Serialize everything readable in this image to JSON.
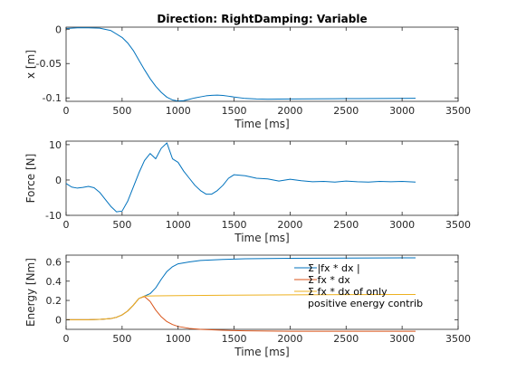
{
  "chart_data": [
    {
      "type": "line",
      "title": "Direction: RightDamping: Variable",
      "xlabel": "Time [ms]",
      "ylabel": "x [m]",
      "xlim": [
        0,
        3500
      ],
      "ylim": [
        -0.105,
        0.003
      ],
      "xticks": [
        0,
        500,
        1000,
        1500,
        2000,
        2500,
        3000,
        3500
      ],
      "xtick_labels": [
        "0",
        "500",
        "1000",
        "1500",
        "2000",
        "2500",
        "3000",
        "3500"
      ],
      "yticks": [
        0,
        -0.05,
        -0.1
      ],
      "ytick_labels": [
        "0",
        "-0.05",
        "-0.1"
      ],
      "grid": false,
      "series": [
        {
          "color": "#0072bd",
          "x": [
            0,
            100,
            200,
            300,
            400,
            500,
            550,
            600,
            650,
            700,
            750,
            800,
            850,
            900,
            950,
            1000,
            1050,
            1100,
            1150,
            1200,
            1250,
            1300,
            1350,
            1400,
            1450,
            1500,
            1600,
            1700,
            1800,
            2000,
            2200,
            2400,
            2600,
            2800,
            3000,
            3120
          ],
          "y": [
            0.001,
            0.002,
            0.002,
            0.0015,
            -0.002,
            -0.012,
            -0.02,
            -0.031,
            -0.045,
            -0.059,
            -0.072,
            -0.083,
            -0.092,
            -0.099,
            -0.103,
            -0.1045,
            -0.104,
            -0.102,
            -0.1,
            -0.0985,
            -0.097,
            -0.0962,
            -0.096,
            -0.0965,
            -0.0975,
            -0.0988,
            -0.1008,
            -0.1015,
            -0.1018,
            -0.1016,
            -0.1013,
            -0.1012,
            -0.101,
            -0.1009,
            -0.1008,
            -0.1006
          ]
        }
      ]
    },
    {
      "type": "line",
      "title": "",
      "xlabel": "Time [ms]",
      "ylabel": "Force [N]",
      "xlim": [
        0,
        3500
      ],
      "ylim": [
        -10,
        11
      ],
      "xticks": [
        0,
        500,
        1000,
        1500,
        2000,
        2500,
        3000,
        3500
      ],
      "xtick_labels": [
        "0",
        "500",
        "1000",
        "1500",
        "2000",
        "2500",
        "3000",
        "3500"
      ],
      "yticks": [
        10,
        0,
        -10
      ],
      "ytick_labels": [
        "10",
        "0",
        "-10"
      ],
      "grid": false,
      "series": [
        {
          "color": "#0072bd",
          "x": [
            0,
            50,
            100,
            150,
            200,
            250,
            300,
            350,
            400,
            450,
            500,
            550,
            600,
            650,
            700,
            750,
            800,
            850,
            900,
            950,
            1000,
            1050,
            1100,
            1150,
            1200,
            1250,
            1300,
            1350,
            1400,
            1450,
            1500,
            1600,
            1700,
            1800,
            1900,
            2000,
            2100,
            2200,
            2300,
            2400,
            2500,
            2600,
            2700,
            2800,
            2900,
            3000,
            3120
          ],
          "y": [
            -1,
            -2,
            -2.3,
            -2.1,
            -1.8,
            -2.2,
            -3.5,
            -5.5,
            -7.5,
            -9,
            -8.8,
            -6,
            -2,
            2,
            5.5,
            7.5,
            6,
            9,
            10.5,
            6,
            5,
            2.5,
            0.5,
            -1.5,
            -3,
            -4,
            -4,
            -3,
            -1.5,
            0.5,
            1.5,
            1.2,
            0.5,
            0.3,
            -0.3,
            0.2,
            -0.2,
            -0.5,
            -0.4,
            -0.6,
            -0.3,
            -0.5,
            -0.6,
            -0.4,
            -0.5,
            -0.4,
            -0.6
          ]
        }
      ]
    },
    {
      "type": "line",
      "title": "",
      "xlabel": "Time [ms]",
      "ylabel": "Energy [Nm]",
      "xlim": [
        0,
        3500
      ],
      "ylim": [
        -0.1,
        0.67
      ],
      "xticks": [
        0,
        500,
        1000,
        1500,
        2000,
        2500,
        3000,
        3500
      ],
      "xtick_labels": [
        "0",
        "500",
        "1000",
        "1500",
        "2000",
        "2500",
        "3000",
        "3500"
      ],
      "yticks": [
        0.6,
        0.4,
        0.2,
        0
      ],
      "ytick_labels": [
        "0.6",
        "0.4",
        "0.2",
        "0"
      ],
      "grid": false,
      "legend_placement": "right",
      "series": [
        {
          "name": "Σ |fx * dx |",
          "color": "#0072bd",
          "x": [
            0,
            200,
            300,
            400,
            450,
            500,
            550,
            600,
            650,
            700,
            750,
            800,
            850,
            900,
            950,
            1000,
            1100,
            1200,
            1400,
            1600,
            2000,
            2500,
            3000,
            3120
          ],
          "y": [
            0,
            0,
            0.003,
            0.012,
            0.025,
            0.05,
            0.09,
            0.15,
            0.22,
            0.245,
            0.27,
            0.33,
            0.42,
            0.5,
            0.55,
            0.58,
            0.6,
            0.615,
            0.625,
            0.632,
            0.637,
            0.64,
            0.642,
            0.642
          ]
        },
        {
          "name": "Σ fx * dx",
          "color": "#d95319",
          "x": [
            0,
            200,
            300,
            400,
            450,
            500,
            550,
            600,
            650,
            700,
            750,
            800,
            850,
            900,
            950,
            1000,
            1100,
            1200,
            1400,
            1600,
            2000,
            2500,
            3000,
            3120
          ],
          "y": [
            0,
            0,
            0.003,
            0.012,
            0.025,
            0.05,
            0.09,
            0.15,
            0.22,
            0.24,
            0.19,
            0.1,
            0.03,
            -0.02,
            -0.05,
            -0.07,
            -0.09,
            -0.1,
            -0.11,
            -0.115,
            -0.12,
            -0.12,
            -0.12,
            -0.12
          ]
        },
        {
          "name": "Σ fx * dx of only\npositive energy contrib",
          "color": "#edb120",
          "x": [
            0,
            200,
            300,
            400,
            450,
            500,
            550,
            600,
            650,
            700,
            800,
            1000,
            1500,
            2000,
            2500,
            3000,
            3120
          ],
          "y": [
            0,
            0,
            0.003,
            0.012,
            0.025,
            0.05,
            0.09,
            0.15,
            0.22,
            0.245,
            0.247,
            0.25,
            0.255,
            0.258,
            0.26,
            0.262,
            0.262
          ]
        }
      ]
    }
  ]
}
